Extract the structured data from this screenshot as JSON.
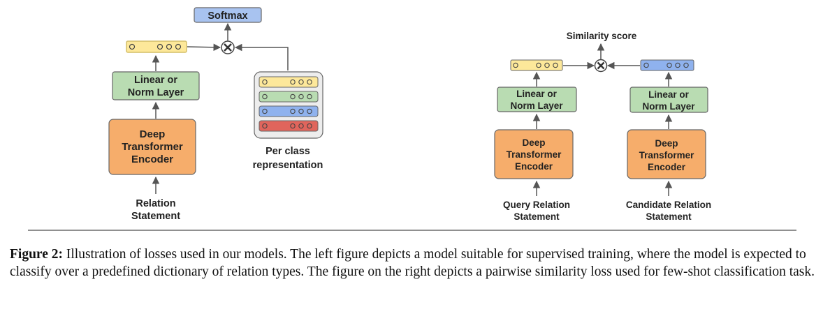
{
  "left": {
    "softmax": "Softmax",
    "linear_l1": "Linear or",
    "linear_l2": "Norm Layer",
    "encoder_l1": "Deep",
    "encoder_l2": "Transformer",
    "encoder_l3": "Encoder",
    "input_l1": "Relation",
    "input_l2": "Statement",
    "per_class_l1": "Per class",
    "per_class_l2": "representation"
  },
  "right": {
    "similarity": "Similarity score",
    "q_linear_l1": "Linear or",
    "q_linear_l2": "Norm Layer",
    "q_encoder_l1": "Deep",
    "q_encoder_l2": "Transformer",
    "q_encoder_l3": "Encoder",
    "q_input_l1": "Query Relation",
    "q_input_l2": "Statement",
    "c_linear_l1": "Linear or",
    "c_linear_l2": "Norm Layer",
    "c_encoder_l1": "Deep",
    "c_encoder_l2": "Transformer",
    "c_encoder_l3": "Encoder",
    "c_input_l1": "Candidate Relation",
    "c_input_l2": "Statement"
  },
  "caption": {
    "label": "Figure 2:",
    "text": " Illustration of losses used in our models. The left figure depicts a model suitable for supervised training, where the model is expected to classify over a predefined dictionary of relation types. The figure on the right depicts a pairwise similarity loss used for few-shot classification task."
  },
  "colors": {
    "softmax_fill": "#a8c3f0",
    "linear_fill": "#b9dcb2",
    "encoder_fill": "#f6ad6b",
    "yellow_vec": "#fde89a",
    "green_vec": "#b9dcb2",
    "blue_vec": "#8fb2ee",
    "red_vec": "#e0655c",
    "container_fill": "#ededed"
  }
}
